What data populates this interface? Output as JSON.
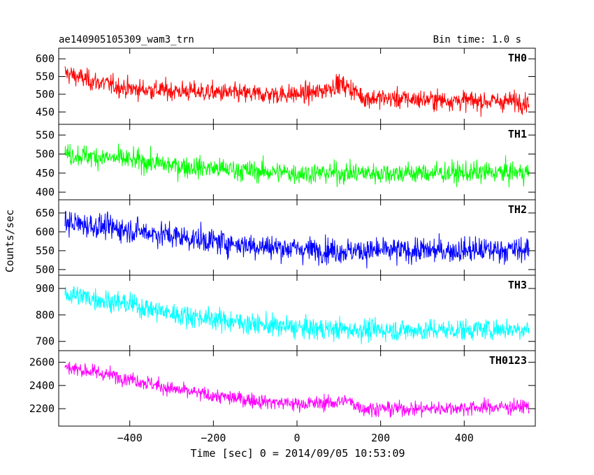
{
  "chart_data": {
    "type": "line",
    "title": "ae140905105309_wam3_trn",
    "subtitle": "Bin time: 1.0 s",
    "xlabel": "Time [sec] 0 = 2014/09/05 10:53:09",
    "ylabel": "Counts/sec",
    "xlim": [
      -570,
      570
    ],
    "x_range": [
      -555,
      555
    ],
    "x_step": 1,
    "xticks": [
      -400,
      -200,
      0,
      200,
      400
    ],
    "xtick_labels": [
      "−400",
      "−200",
      "0",
      "200",
      "400"
    ],
    "panels": [
      {
        "name": "TH0",
        "color": "#ff0000",
        "ylim": [
          415,
          630
        ],
        "yticks": [
          450,
          500,
          550,
          600
        ],
        "trend": [
          [
            -555,
            560
          ],
          [
            -500,
            540
          ],
          [
            -400,
            515
          ],
          [
            -300,
            510
          ],
          [
            -200,
            505
          ],
          [
            -100,
            500
          ],
          [
            0,
            500
          ],
          [
            50,
            505
          ],
          [
            100,
            530
          ],
          [
            130,
            515
          ],
          [
            160,
            490
          ],
          [
            300,
            485
          ],
          [
            450,
            480
          ],
          [
            555,
            480
          ]
        ],
        "noise": 22
      },
      {
        "name": "TH1",
        "color": "#00ff00",
        "ylim": [
          380,
          578
        ],
        "yticks": [
          400,
          450,
          500,
          550
        ],
        "trend": [
          [
            -555,
            500
          ],
          [
            -400,
            485
          ],
          [
            -300,
            470
          ],
          [
            -200,
            462
          ],
          [
            -100,
            455
          ],
          [
            0,
            450
          ],
          [
            100,
            450
          ],
          [
            300,
            450
          ],
          [
            555,
            452
          ]
        ],
        "noise": 22
      },
      {
        "name": "TH2",
        "color": "#0000ff",
        "ylim": [
          485,
          685
        ],
        "yticks": [
          500,
          550,
          600,
          650
        ],
        "trend": [
          [
            -555,
            625
          ],
          [
            -400,
            605
          ],
          [
            -300,
            590
          ],
          [
            -200,
            575
          ],
          [
            -100,
            563
          ],
          [
            0,
            555
          ],
          [
            100,
            550
          ],
          [
            300,
            550
          ],
          [
            555,
            553
          ]
        ],
        "noise": 26
      },
      {
        "name": "TH3",
        "color": "#00ffff",
        "ylim": [
          665,
          950
        ],
        "yticks": [
          700,
          800,
          900
        ],
        "trend": [
          [
            -555,
            880
          ],
          [
            -400,
            840
          ],
          [
            -300,
            805
          ],
          [
            -200,
            785
          ],
          [
            -100,
            765
          ],
          [
            0,
            750
          ],
          [
            100,
            745
          ],
          [
            300,
            742
          ],
          [
            555,
            748
          ]
        ],
        "noise": 32
      },
      {
        "name": "TH0123",
        "color": "#ff00ff",
        "ylim": [
          2050,
          2700
        ],
        "yticks": [
          2200,
          2400,
          2600
        ],
        "trend": [
          [
            -555,
            2560
          ],
          [
            -400,
            2460
          ],
          [
            -300,
            2370
          ],
          [
            -200,
            2310
          ],
          [
            -100,
            2270
          ],
          [
            0,
            2240
          ],
          [
            80,
            2250
          ],
          [
            120,
            2270
          ],
          [
            160,
            2200
          ],
          [
            300,
            2200
          ],
          [
            555,
            2220
          ]
        ],
        "noise": 50
      }
    ]
  }
}
